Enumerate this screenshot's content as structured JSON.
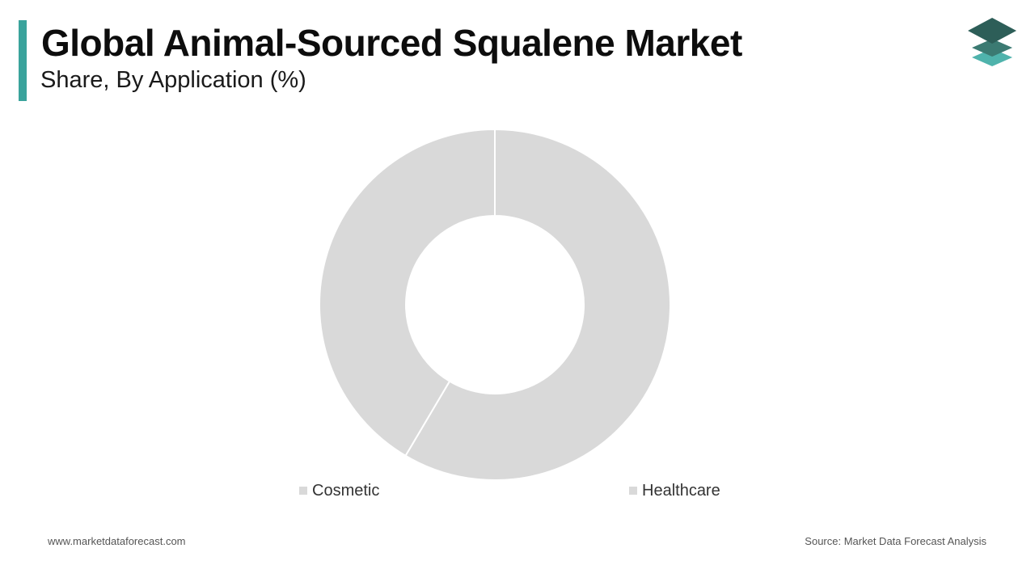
{
  "header": {
    "title": "Global Animal-Sourced Squalene Market",
    "subtitle": "Share, By Application (%)"
  },
  "colors": {
    "accent": "#3aa39c",
    "slice": "#d9d9d9",
    "logo_top": "#2d5e58",
    "logo_mid": "#3b7a72",
    "logo_bottom": "#4fb3ac"
  },
  "logo": {
    "icon": "stacked-layers-icon"
  },
  "chart_data": {
    "type": "pie",
    "variant": "donut",
    "categories": [
      "Cosmetic",
      "Healthcare"
    ],
    "values": [
      41.5,
      58.5
    ],
    "legend_position": "bottom"
  },
  "legend": {
    "items": [
      {
        "label": "Cosmetic"
      },
      {
        "label": "Healthcare"
      }
    ]
  },
  "footer": {
    "website": "www.marketdataforecast.com",
    "source": "Source: Market Data Forecast Analysis"
  }
}
